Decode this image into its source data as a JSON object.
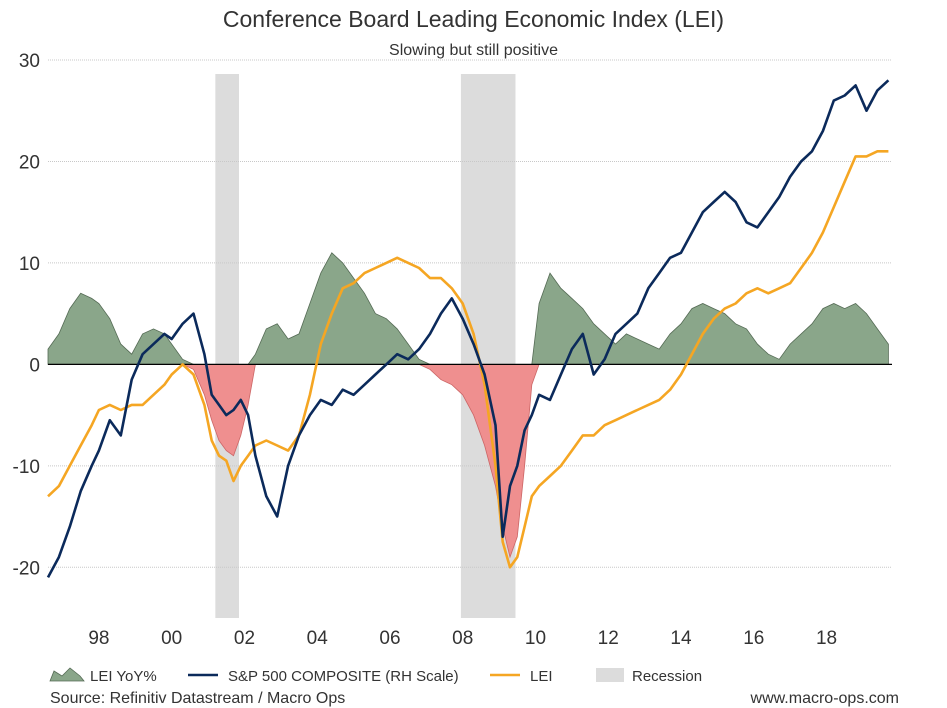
{
  "chart_data": {
    "type": "line",
    "title": "Conference Board Leading Economic Index (LEI)",
    "subtitle": "Slowing but still positive",
    "source": "Source: Refinitiv Datastream / Macro Ops",
    "website": "www.macro-ops.com",
    "xlim": [
      1996.6,
      2019.8
    ],
    "ylim": [
      -25,
      30
    ],
    "y_ticks": [
      30,
      20,
      10,
      0,
      -10,
      -20
    ],
    "x_ticks": [
      {
        "year": 1998,
        "label": "98"
      },
      {
        "year": 2000,
        "label": "00"
      },
      {
        "year": 2002,
        "label": "02"
      },
      {
        "year": 2004,
        "label": "04"
      },
      {
        "year": 2006,
        "label": "06"
      },
      {
        "year": 2008,
        "label": "08"
      },
      {
        "year": 2010,
        "label": "10"
      },
      {
        "year": 2012,
        "label": "12"
      },
      {
        "year": 2014,
        "label": "14"
      },
      {
        "year": 2016,
        "label": "16"
      },
      {
        "year": 2018,
        "label": "18"
      }
    ],
    "grid": true,
    "recessions": [
      {
        "start": 2001.2,
        "end": 2001.85
      },
      {
        "start": 2007.95,
        "end": 2009.45
      }
    ],
    "legend": [
      {
        "label": "LEI YoY%",
        "type": "area",
        "color": "#8aa68a"
      },
      {
        "label": "S&P 500 COMPOSITE (RH Scale)",
        "type": "line",
        "color": "#0b2a5b"
      },
      {
        "label": "LEI",
        "type": "line",
        "color": "#f5a623"
      },
      {
        "label": "Recession",
        "type": "box",
        "color": "#dcdcdc"
      }
    ],
    "colors": {
      "area_positive": "#8aa68a",
      "area_negative": "#ef8f8f",
      "area_stroke": "#556b55",
      "sp500": "#0b2a5b",
      "lei": "#f5a623",
      "recession": "#dcdcdc",
      "grid": "#c8c8c8",
      "zero_line": "#000000"
    },
    "series": [
      {
        "name": "LEI YoY%",
        "x": [
          1996.6,
          1996.9,
          1997.2,
          1997.5,
          1997.8,
          1998.0,
          1998.3,
          1998.6,
          1998.9,
          1999.2,
          1999.5,
          1999.8,
          2000.0,
          2000.3,
          2000.6,
          2000.9,
          2001.1,
          2001.3,
          2001.5,
          2001.7,
          2001.9,
          2002.1,
          2002.3,
          2002.6,
          2002.9,
          2003.2,
          2003.5,
          2003.8,
          2004.1,
          2004.4,
          2004.7,
          2005.0,
          2005.3,
          2005.6,
          2005.9,
          2006.2,
          2006.5,
          2006.8,
          2007.1,
          2007.4,
          2007.7,
          2008.0,
          2008.3,
          2008.6,
          2008.9,
          2009.1,
          2009.3,
          2009.5,
          2009.7,
          2009.9,
          2010.1,
          2010.4,
          2010.7,
          2011.0,
          2011.3,
          2011.6,
          2011.9,
          2012.2,
          2012.5,
          2012.8,
          2013.1,
          2013.4,
          2013.7,
          2014.0,
          2014.3,
          2014.6,
          2014.9,
          2015.2,
          2015.5,
          2015.8,
          2016.1,
          2016.4,
          2016.7,
          2017.0,
          2017.3,
          2017.6,
          2017.9,
          2018.2,
          2018.5,
          2018.8,
          2019.1,
          2019.4,
          2019.7
        ],
        "values": [
          1.5,
          3.0,
          5.5,
          7.0,
          6.5,
          6.0,
          4.5,
          2.0,
          1.0,
          3.0,
          3.5,
          3.0,
          2.0,
          0.5,
          -0.5,
          -3.0,
          -5.5,
          -7.5,
          -8.5,
          -9.0,
          -7.0,
          -4.0,
          1.0,
          3.5,
          4.0,
          2.5,
          3.0,
          6.0,
          9.0,
          11.0,
          10.0,
          8.5,
          7.0,
          5.0,
          4.5,
          3.5,
          2.0,
          0.5,
          -0.5,
          -1.5,
          -2.0,
          -3.0,
          -5.0,
          -8.0,
          -12.0,
          -16.0,
          -19.0,
          -17.0,
          -10.0,
          -2.0,
          6.0,
          9.0,
          7.5,
          6.5,
          5.5,
          4.0,
          3.0,
          2.0,
          3.0,
          2.5,
          2.0,
          1.5,
          3.0,
          4.0,
          5.5,
          6.0,
          5.5,
          5.0,
          4.0,
          3.5,
          2.0,
          1.0,
          0.5,
          2.0,
          3.0,
          4.0,
          5.5,
          6.0,
          5.5,
          6.0,
          5.0,
          3.5,
          2.0
        ]
      },
      {
        "name": "S&P 500 COMPOSITE (RH Scale)",
        "x": [
          1996.6,
          1996.9,
          1997.2,
          1997.5,
          1997.8,
          1998.0,
          1998.3,
          1998.6,
          1998.9,
          1999.2,
          1999.5,
          1999.8,
          2000.0,
          2000.3,
          2000.6,
          2000.9,
          2001.1,
          2001.3,
          2001.5,
          2001.7,
          2001.9,
          2002.1,
          2002.3,
          2002.6,
          2002.9,
          2003.2,
          2003.5,
          2003.8,
          2004.1,
          2004.4,
          2004.7,
          2005.0,
          2005.3,
          2005.6,
          2005.9,
          2006.2,
          2006.5,
          2006.8,
          2007.1,
          2007.4,
          2007.7,
          2008.0,
          2008.3,
          2008.6,
          2008.9,
          2009.1,
          2009.3,
          2009.5,
          2009.7,
          2009.9,
          2010.1,
          2010.4,
          2010.7,
          2011.0,
          2011.3,
          2011.6,
          2011.9,
          2012.2,
          2012.5,
          2012.8,
          2013.1,
          2013.4,
          2013.7,
          2014.0,
          2014.3,
          2014.6,
          2014.9,
          2015.2,
          2015.5,
          2015.8,
          2016.1,
          2016.4,
          2016.7,
          2017.0,
          2017.3,
          2017.6,
          2017.9,
          2018.2,
          2018.5,
          2018.8,
          2019.1,
          2019.4,
          2019.7
        ],
        "values": [
          -21.0,
          -19.0,
          -16.0,
          -12.5,
          -10.0,
          -8.5,
          -5.5,
          -7.0,
          -1.5,
          1.0,
          2.0,
          3.0,
          2.5,
          4.0,
          5.0,
          1.0,
          -3.0,
          -4.0,
          -5.0,
          -4.5,
          -3.5,
          -5.0,
          -9.0,
          -13.0,
          -15.0,
          -10.0,
          -7.0,
          -5.0,
          -3.5,
          -4.0,
          -2.5,
          -3.0,
          -2.0,
          -1.0,
          0.0,
          1.0,
          0.5,
          1.5,
          3.0,
          5.0,
          6.5,
          4.5,
          2.0,
          -1.0,
          -6.0,
          -17.0,
          -12.0,
          -10.0,
          -6.5,
          -5.0,
          -3.0,
          -3.5,
          -1.0,
          1.5,
          3.0,
          -1.0,
          0.5,
          3.0,
          4.0,
          5.0,
          7.5,
          9.0,
          10.5,
          11.0,
          13.0,
          15.0,
          16.0,
          17.0,
          16.0,
          14.0,
          13.5,
          15.0,
          16.5,
          18.5,
          20.0,
          21.0,
          23.0,
          26.0,
          26.5,
          27.5,
          25.0,
          27.0,
          28.0
        ]
      },
      {
        "name": "LEI",
        "x": [
          1996.6,
          1996.9,
          1997.2,
          1997.5,
          1997.8,
          1998.0,
          1998.3,
          1998.6,
          1998.9,
          1999.2,
          1999.5,
          1999.8,
          2000.0,
          2000.3,
          2000.6,
          2000.9,
          2001.1,
          2001.3,
          2001.5,
          2001.7,
          2001.9,
          2002.1,
          2002.3,
          2002.6,
          2002.9,
          2003.2,
          2003.5,
          2003.8,
          2004.1,
          2004.4,
          2004.7,
          2005.0,
          2005.3,
          2005.6,
          2005.9,
          2006.2,
          2006.5,
          2006.8,
          2007.1,
          2007.4,
          2007.7,
          2008.0,
          2008.3,
          2008.6,
          2008.9,
          2009.1,
          2009.3,
          2009.5,
          2009.7,
          2009.9,
          2010.1,
          2010.4,
          2010.7,
          2011.0,
          2011.3,
          2011.6,
          2011.9,
          2012.2,
          2012.5,
          2012.8,
          2013.1,
          2013.4,
          2013.7,
          2014.0,
          2014.3,
          2014.6,
          2014.9,
          2015.2,
          2015.5,
          2015.8,
          2016.1,
          2016.4,
          2016.7,
          2017.0,
          2017.3,
          2017.6,
          2017.9,
          2018.2,
          2018.5,
          2018.8,
          2019.1,
          2019.4,
          2019.7
        ],
        "values": [
          -13.0,
          -12.0,
          -10.0,
          -8.0,
          -6.0,
          -4.5,
          -4.0,
          -4.5,
          -4.0,
          -4.0,
          -3.0,
          -2.0,
          -1.0,
          0.0,
          -1.0,
          -4.0,
          -7.5,
          -9.0,
          -9.5,
          -11.5,
          -10.0,
          -9.0,
          -8.0,
          -7.5,
          -8.0,
          -8.5,
          -7.0,
          -3.0,
          2.0,
          5.0,
          7.5,
          8.0,
          9.0,
          9.5,
          10.0,
          10.5,
          10.0,
          9.5,
          8.5,
          8.5,
          7.5,
          6.0,
          3.0,
          -2.0,
          -10.0,
          -17.5,
          -20.0,
          -19.0,
          -16.0,
          -13.0,
          -12.0,
          -11.0,
          -10.0,
          -8.5,
          -7.0,
          -7.0,
          -6.0,
          -5.5,
          -5.0,
          -4.5,
          -4.0,
          -3.5,
          -2.5,
          -1.0,
          1.0,
          3.0,
          4.5,
          5.5,
          6.0,
          7.0,
          7.5,
          7.0,
          7.5,
          8.0,
          9.5,
          11.0,
          13.0,
          15.5,
          18.0,
          20.5,
          20.5,
          21.0,
          21.0
        ]
      }
    ]
  }
}
